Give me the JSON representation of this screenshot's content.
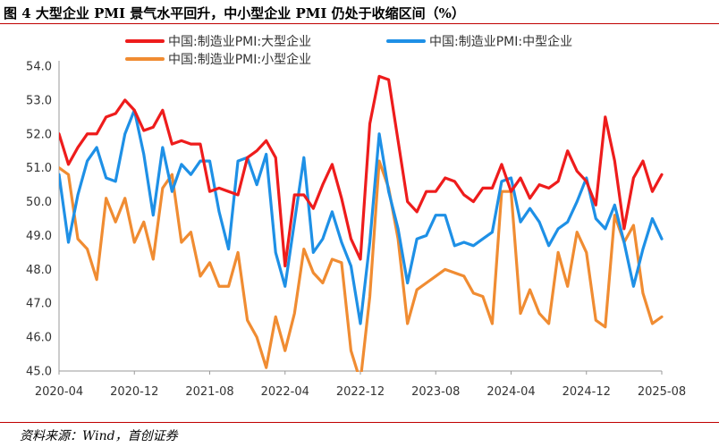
{
  "figure": {
    "title": "图 4  大型企业 PMI 景气水平回升，中小型企业 PMI 仍处于收缩区间（%）",
    "source": "资料来源：Wind，首创证券"
  },
  "chart_data": {
    "type": "line",
    "ylim": [
      45.0,
      54.0
    ],
    "yticks": [
      "45.0",
      "46.0",
      "47.0",
      "48.0",
      "49.0",
      "50.0",
      "51.0",
      "52.0",
      "53.0",
      "54.0"
    ],
    "xtick_labels": [
      "2020-04",
      "2020-12",
      "2021-08",
      "2022-04",
      "2022-12",
      "2023-08",
      "2024-04",
      "2024-12",
      "2025-08"
    ],
    "x": [
      "2020-04",
      "2020-05",
      "2020-06",
      "2020-07",
      "2020-08",
      "2020-09",
      "2020-10",
      "2020-11",
      "2020-12",
      "2021-01",
      "2021-02",
      "2021-03",
      "2021-04",
      "2021-05",
      "2021-06",
      "2021-07",
      "2021-08",
      "2021-09",
      "2021-10",
      "2021-11",
      "2021-12",
      "2022-01",
      "2022-02",
      "2022-03",
      "2022-04",
      "2022-05",
      "2022-06",
      "2022-07",
      "2022-08",
      "2022-09",
      "2022-10",
      "2022-11",
      "2022-12",
      "2023-01",
      "2023-02",
      "2023-03",
      "2023-04",
      "2023-05",
      "2023-06",
      "2023-07",
      "2023-08",
      "2023-09",
      "2023-10",
      "2023-11",
      "2023-12",
      "2024-01",
      "2024-02",
      "2024-03",
      "2024-04",
      "2024-05",
      "2024-06",
      "2024-07",
      "2024-08",
      "2024-09",
      "2024-10",
      "2024-11",
      "2024-12",
      "2025-01",
      "2025-02",
      "2025-03",
      "2025-04",
      "2025-05",
      "2025-06",
      "2025-07",
      "2025-08"
    ],
    "legend_position": "top",
    "grid": false,
    "series": [
      {
        "name": "中国:制造业PMI:大型企业",
        "color": "#ee1c1c",
        "values": [
          52.0,
          51.1,
          51.6,
          52.0,
          52.0,
          52.5,
          52.6,
          53.0,
          52.7,
          52.1,
          52.2,
          52.7,
          51.7,
          51.8,
          51.7,
          51.7,
          50.3,
          50.4,
          50.3,
          50.2,
          51.3,
          51.5,
          51.8,
          51.3,
          48.1,
          50.2,
          50.2,
          49.8,
          50.5,
          51.1,
          50.1,
          48.9,
          48.3,
          52.3,
          53.7,
          53.6,
          51.8,
          50.0,
          49.7,
          50.3,
          50.3,
          50.7,
          50.6,
          50.2,
          50.0,
          50.4,
          50.4,
          51.1,
          50.3,
          50.7,
          50.1,
          50.5,
          50.4,
          50.6,
          51.5,
          50.9,
          50.6,
          49.9,
          52.5,
          51.2,
          49.2,
          50.7,
          51.2,
          50.3,
          50.8
        ]
      },
      {
        "name": "中国:制造业PMI:中型企业",
        "color": "#1e90e6",
        "values": [
          50.8,
          48.8,
          50.2,
          51.2,
          51.6,
          50.7,
          50.6,
          52.0,
          52.7,
          51.4,
          49.6,
          51.6,
          50.3,
          51.1,
          50.8,
          51.2,
          51.2,
          49.7,
          48.6,
          51.2,
          51.3,
          50.5,
          51.4,
          48.5,
          47.5,
          49.4,
          51.3,
          48.5,
          48.9,
          49.7,
          48.8,
          48.1,
          46.4,
          48.8,
          52.0,
          50.3,
          49.2,
          47.6,
          48.9,
          49.0,
          49.6,
          49.6,
          48.7,
          48.8,
          48.7,
          48.9,
          49.1,
          50.6,
          50.7,
          49.4,
          49.8,
          49.4,
          48.7,
          49.2,
          49.4,
          50.0,
          50.7,
          49.5,
          49.2,
          49.9,
          48.8,
          47.5,
          48.6,
          49.5,
          48.9
        ]
      },
      {
        "name": "中国:制造业PMI:小型企业",
        "color": "#f08c32",
        "values": [
          51.0,
          50.8,
          48.9,
          48.6,
          47.7,
          50.1,
          49.4,
          50.1,
          48.8,
          49.4,
          48.3,
          50.4,
          50.8,
          48.8,
          49.1,
          47.8,
          48.2,
          47.5,
          47.5,
          48.5,
          46.5,
          46.0,
          45.1,
          46.6,
          45.6,
          46.7,
          48.6,
          47.9,
          47.6,
          48.3,
          48.2,
          45.6,
          44.7,
          47.2,
          51.2,
          50.4,
          48.9,
          46.4,
          47.4,
          47.6,
          47.8,
          48.0,
          47.9,
          47.8,
          47.3,
          47.2,
          46.4,
          50.3,
          50.3,
          46.7,
          47.4,
          46.7,
          46.4,
          48.5,
          47.5,
          49.1,
          48.5,
          46.5,
          46.3,
          49.6,
          48.8,
          49.3,
          47.3,
          46.4,
          46.6
        ]
      }
    ]
  }
}
